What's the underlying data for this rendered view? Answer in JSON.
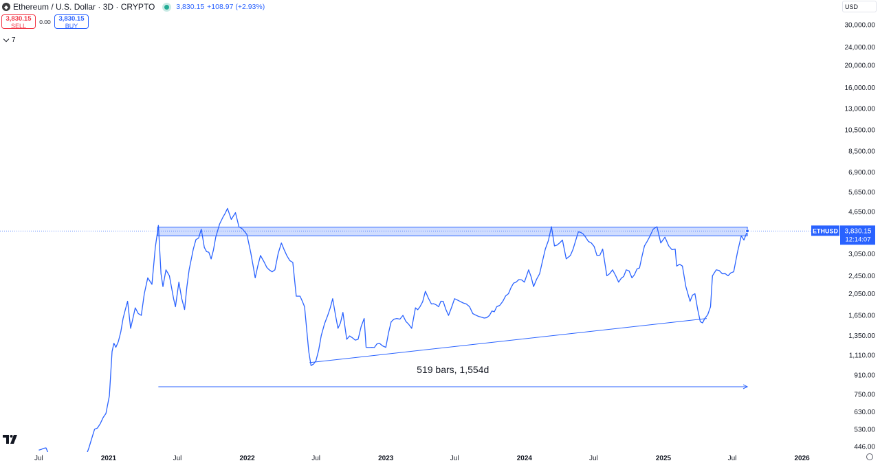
{
  "header": {
    "symbol_title": "Ethereum / U.S. Dollar · 3D · CRYPTO",
    "last_price": "3,830.15",
    "change": "+108.97 (+2.93%)"
  },
  "trade": {
    "sell_price": "3,830.15",
    "sell_label": "SELL",
    "spread": "0.00",
    "buy_price": "3,830.15",
    "buy_label": "BUY"
  },
  "indicators_toggle": {
    "count": "7"
  },
  "currency": "USD",
  "icons": [
    "ethereum-icon",
    "live-status-dot",
    "chevron-down-icon",
    "tradingview-logo",
    "settings-gear-icon"
  ],
  "colors": {
    "line": "#2962ff",
    "zone": "#2962ff",
    "sell": "#f23645",
    "buy": "#2962ff",
    "live": "#22ab94"
  },
  "chart_data": {
    "type": "line",
    "symbol": "ETHUSD",
    "scale": "log",
    "y_ticks": [
      446,
      530,
      630,
      750,
      910,
      1110,
      1350,
      1650,
      2050,
      2450,
      3050,
      3830.15,
      4650,
      5650,
      6900,
      8500,
      10500,
      13000,
      16000,
      20000,
      24000,
      30000
    ],
    "y_tick_labels": [
      "446.00",
      "530.00",
      "630.00",
      "750.00",
      "910.00",
      "1,110.00",
      "1,350.00",
      "1,650.00",
      "2,050.00",
      "2,450.00",
      "3,050.00",
      "3,830.15",
      "4,650.00",
      "5,650.00",
      "6,900.00",
      "8,500.00",
      "10,500.00",
      "13,000.00",
      "16,000.00",
      "20,000.00",
      "24,000.00",
      "30,000.00"
    ],
    "x_labels": [
      {
        "d": "2020-07-01",
        "label": "Jul",
        "bold": false
      },
      {
        "d": "2021-01-01",
        "label": "2021",
        "bold": true
      },
      {
        "d": "2021-07-01",
        "label": "Jul",
        "bold": false
      },
      {
        "d": "2022-01-01",
        "label": "2022",
        "bold": true
      },
      {
        "d": "2022-07-01",
        "label": "Jul",
        "bold": false
      },
      {
        "d": "2023-01-01",
        "label": "2023",
        "bold": true
      },
      {
        "d": "2023-07-01",
        "label": "Jul",
        "bold": false
      },
      {
        "d": "2024-01-01",
        "label": "2024",
        "bold": true
      },
      {
        "d": "2024-07-01",
        "label": "Jul",
        "bold": false
      },
      {
        "d": "2025-01-01",
        "label": "2025",
        "bold": true
      },
      {
        "d": "2025-07-01",
        "label": "Jul",
        "bold": false
      },
      {
        "d": "2026-01-01",
        "label": "2026",
        "bold": true
      }
    ],
    "price_tag": {
      "label": "ETHUSD",
      "price": "3,830.15",
      "countdown": "12:14:07"
    },
    "resistance_zone": {
      "from": "2021-05-10",
      "to": "2025-08-10",
      "low": 3650,
      "high": 3980
    },
    "support_line": [
      {
        "d": "2022-06-14",
        "v": 1030
      },
      {
        "d": "2025-04-25",
        "v": 1600
      }
    ],
    "date_range": {
      "from": "2021-05-12",
      "to": "2025-08-10",
      "v": 810,
      "label": "519 bars, 1,554d"
    },
    "series": [
      {
        "values": [
          [
            "2020-07-01",
            430
          ],
          [
            "2020-07-20",
            440
          ],
          [
            "2020-08-05",
            400
          ],
          [
            "2020-09-01",
            380
          ],
          [
            "2020-09-25",
            350
          ],
          [
            "2020-10-20",
            380
          ],
          [
            "2020-11-10",
            440
          ],
          [
            "2020-11-25",
            530
          ],
          [
            "2020-12-10",
            560
          ],
          [
            "2020-12-25",
            620
          ],
          [
            "2021-01-03",
            740
          ],
          [
            "2021-01-10",
            1150
          ],
          [
            "2021-01-15",
            1250
          ],
          [
            "2021-01-20",
            1200
          ],
          [
            "2021-02-02",
            1400
          ],
          [
            "2021-02-08",
            1600
          ],
          [
            "2021-02-20",
            1900
          ],
          [
            "2021-02-28",
            1450
          ],
          [
            "2021-03-12",
            1780
          ],
          [
            "2021-03-28",
            1650
          ],
          [
            "2021-04-05",
            2050
          ],
          [
            "2021-04-14",
            2400
          ],
          [
            "2021-04-25",
            2250
          ],
          [
            "2021-05-04",
            3250
          ],
          [
            "2021-05-12",
            4050
          ],
          [
            "2021-05-19",
            2500
          ],
          [
            "2021-05-24",
            2200
          ],
          [
            "2021-06-01",
            2600
          ],
          [
            "2021-06-10",
            2450
          ],
          [
            "2021-06-21",
            1950
          ],
          [
            "2021-06-26",
            1800
          ],
          [
            "2021-07-05",
            2300
          ],
          [
            "2021-07-20",
            1750
          ],
          [
            "2021-08-01",
            2600
          ],
          [
            "2021-08-12",
            3200
          ],
          [
            "2021-09-02",
            3900
          ],
          [
            "2021-09-10",
            3250
          ],
          [
            "2021-09-28",
            2900
          ],
          [
            "2021-10-10",
            3600
          ],
          [
            "2021-10-20",
            4100
          ],
          [
            "2021-10-29",
            4400
          ],
          [
            "2021-11-10",
            4800
          ],
          [
            "2021-11-20",
            4300
          ],
          [
            "2021-12-01",
            4600
          ],
          [
            "2021-12-10",
            4000
          ],
          [
            "2021-12-20",
            3900
          ],
          [
            "2021-12-31",
            3700
          ],
          [
            "2022-01-10",
            3100
          ],
          [
            "2022-01-22",
            2400
          ],
          [
            "2022-02-05",
            3000
          ],
          [
            "2022-02-15",
            2800
          ],
          [
            "2022-02-28",
            2600
          ],
          [
            "2022-03-15",
            2600
          ],
          [
            "2022-04-01",
            3400
          ],
          [
            "2022-04-15",
            3000
          ],
          [
            "2022-05-01",
            2800
          ],
          [
            "2022-05-10",
            2000
          ],
          [
            "2022-05-20",
            2000
          ],
          [
            "2022-06-01",
            1800
          ],
          [
            "2022-06-12",
            1150
          ],
          [
            "2022-06-18",
            1000
          ],
          [
            "2022-07-01",
            1050
          ],
          [
            "2022-07-15",
            1350
          ],
          [
            "2022-08-01",
            1650
          ],
          [
            "2022-08-14",
            1950
          ],
          [
            "2022-08-28",
            1450
          ],
          [
            "2022-09-10",
            1700
          ],
          [
            "2022-09-20",
            1300
          ],
          [
            "2022-10-05",
            1320
          ],
          [
            "2022-10-20",
            1300
          ],
          [
            "2022-11-05",
            1600
          ],
          [
            "2022-11-10",
            1200
          ],
          [
            "2022-11-25",
            1200
          ],
          [
            "2022-12-15",
            1250
          ],
          [
            "2023-01-01",
            1200
          ],
          [
            "2023-01-15",
            1550
          ],
          [
            "2023-01-30",
            1600
          ],
          [
            "2023-02-15",
            1650
          ],
          [
            "2023-03-10",
            1450
          ],
          [
            "2023-03-20",
            1780
          ],
          [
            "2023-04-01",
            1800
          ],
          [
            "2023-04-15",
            2100
          ],
          [
            "2023-05-01",
            1850
          ],
          [
            "2023-05-20",
            1800
          ],
          [
            "2023-06-01",
            1900
          ],
          [
            "2023-06-15",
            1650
          ],
          [
            "2023-07-01",
            1950
          ],
          [
            "2023-07-15",
            1900
          ],
          [
            "2023-08-01",
            1850
          ],
          [
            "2023-08-18",
            1680
          ],
          [
            "2023-09-10",
            1620
          ],
          [
            "2023-10-01",
            1650
          ],
          [
            "2023-10-20",
            1800
          ],
          [
            "2023-11-05",
            1900
          ],
          [
            "2023-11-20",
            2050
          ],
          [
            "2023-12-10",
            2300
          ],
          [
            "2024-01-01",
            2300
          ],
          [
            "2024-01-12",
            2600
          ],
          [
            "2024-01-25",
            2200
          ],
          [
            "2024-02-10",
            2500
          ],
          [
            "2024-02-25",
            3200
          ],
          [
            "2024-03-12",
            4000
          ],
          [
            "2024-03-20",
            3300
          ],
          [
            "2024-04-10",
            3500
          ],
          [
            "2024-04-20",
            2900
          ],
          [
            "2024-05-01",
            3000
          ],
          [
            "2024-05-22",
            3800
          ],
          [
            "2024-06-10",
            3600
          ],
          [
            "2024-06-25",
            3400
          ],
          [
            "2024-07-10",
            3000
          ],
          [
            "2024-07-25",
            3200
          ],
          [
            "2024-08-05",
            2450
          ],
          [
            "2024-08-20",
            2600
          ],
          [
            "2024-09-05",
            2300
          ],
          [
            "2024-09-25",
            2600
          ],
          [
            "2024-10-10",
            2400
          ],
          [
            "2024-10-30",
            2650
          ],
          [
            "2024-11-12",
            3300
          ],
          [
            "2024-11-25",
            3600
          ],
          [
            "2024-12-05",
            3900
          ],
          [
            "2024-12-15",
            4000
          ],
          [
            "2024-12-25",
            3400
          ],
          [
            "2025-01-05",
            3600
          ],
          [
            "2025-01-15",
            3300
          ],
          [
            "2025-02-01",
            3200
          ],
          [
            "2025-02-05",
            2700
          ],
          [
            "2025-02-20",
            2700
          ],
          [
            "2025-03-01",
            2200
          ],
          [
            "2025-03-12",
            1900
          ],
          [
            "2025-03-25",
            2050
          ],
          [
            "2025-04-08",
            1550
          ],
          [
            "2025-04-20",
            1600
          ],
          [
            "2025-05-05",
            1800
          ],
          [
            "2025-05-10",
            2450
          ],
          [
            "2025-05-20",
            2600
          ],
          [
            "2025-06-05",
            2500
          ],
          [
            "2025-06-20",
            2450
          ],
          [
            "2025-07-05",
            2550
          ],
          [
            "2025-07-15",
            3100
          ],
          [
            "2025-07-25",
            3650
          ],
          [
            "2025-08-01",
            3500
          ],
          [
            "2025-08-10",
            3830.15
          ]
        ]
      }
    ]
  }
}
